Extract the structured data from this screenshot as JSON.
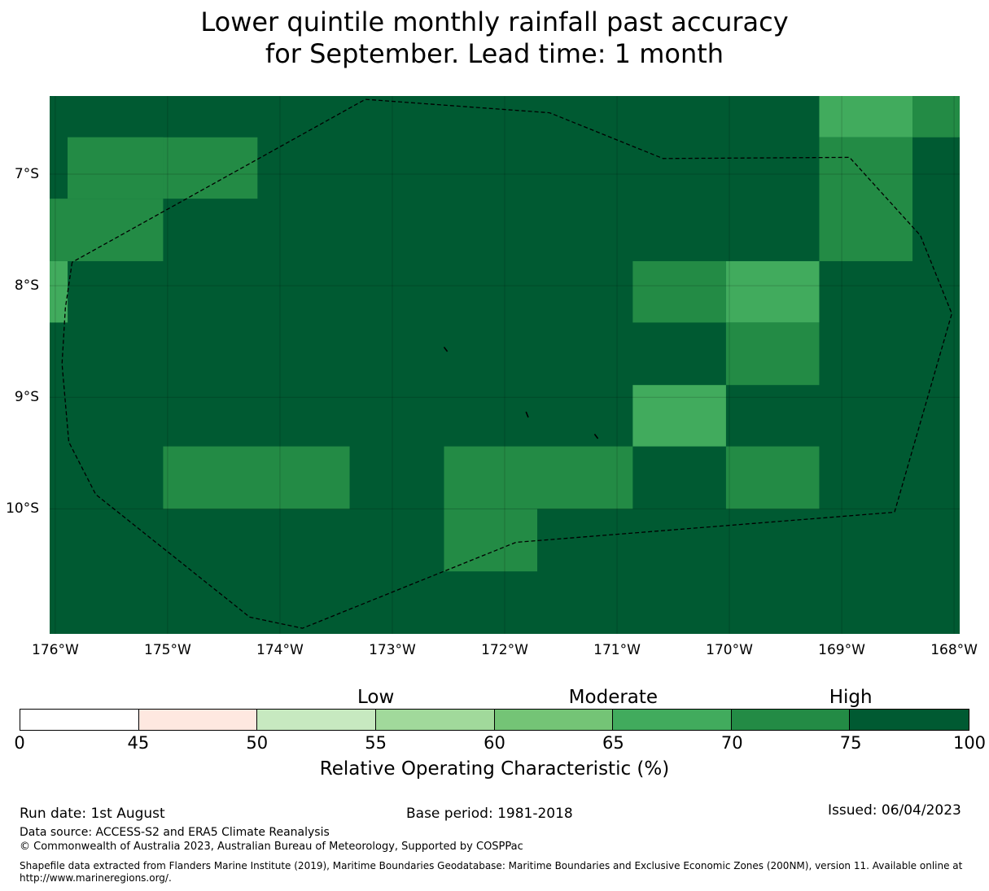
{
  "title": {
    "line1": "Lower quintile monthly rainfall past accuracy",
    "line2": "for September. Lead time: 1 month"
  },
  "map": {
    "background_color": "#005a32",
    "lon_range": [
      -176.05,
      -167.95
    ],
    "lat_range": [
      -6.3,
      -11.12
    ],
    "lat_labels": [
      "7°S",
      "8°S",
      "9°S",
      "10°S"
    ],
    "lat_values": [
      -7,
      -8,
      -9,
      -10
    ],
    "lon_labels": [
      "176°W",
      "175°W",
      "174°W",
      "173°W",
      "172°W",
      "171°W",
      "170°W",
      "169°W",
      "168°W"
    ],
    "lon_values": [
      -176,
      -175,
      -174,
      -173,
      -172,
      -171,
      -170,
      -169,
      -168
    ],
    "cells": [
      {
        "lon0": -169.2,
        "lon1": -168.37,
        "lat0": -6.3,
        "lat1": -6.67,
        "color": "#41ab5d"
      },
      {
        "lon0": -168.37,
        "lon1": -167.95,
        "lat0": -6.3,
        "lat1": -6.67,
        "color": "#238b45"
      },
      {
        "lon0": -175.89,
        "lon1": -174.2,
        "lat0": -6.67,
        "lat1": -7.22,
        "color": "#238b45"
      },
      {
        "lon0": -176.05,
        "lon1": -175.04,
        "lat0": -7.22,
        "lat1": -7.78,
        "color": "#238b45"
      },
      {
        "lon0": -175.89,
        "lon1": -175.04,
        "lat0": -6.67,
        "lat1": -7.22,
        "color": "#238b45"
      },
      {
        "lon0": -176.05,
        "lon1": -175.89,
        "lat0": -7.78,
        "lat1": -8.33,
        "color": "#41ab5d"
      },
      {
        "lon0": -169.2,
        "lon1": -168.37,
        "lat0": -6.67,
        "lat1": -7.78,
        "color": "#238b45"
      },
      {
        "lon0": -170.86,
        "lon1": -170.03,
        "lat0": -7.78,
        "lat1": -8.33,
        "color": "#238b45"
      },
      {
        "lon0": -170.03,
        "lon1": -169.2,
        "lat0": -7.78,
        "lat1": -8.33,
        "color": "#41ab5d"
      },
      {
        "lon0": -170.03,
        "lon1": -169.2,
        "lat0": -8.33,
        "lat1": -8.89,
        "color": "#238b45"
      },
      {
        "lon0": -170.86,
        "lon1": -170.03,
        "lat0": -8.89,
        "lat1": -9.44,
        "color": "#41ab5d"
      },
      {
        "lon0": -170.03,
        "lon1": -169.2,
        "lat0": -9.44,
        "lat1": -10.0,
        "color": "#238b45"
      },
      {
        "lon0": -175.04,
        "lon1": -173.38,
        "lat0": -9.44,
        "lat1": -10.0,
        "color": "#238b45"
      },
      {
        "lon0": -172.54,
        "lon1": -170.86,
        "lat0": -9.44,
        "lat1": -10.0,
        "color": "#238b45"
      },
      {
        "lon0": -172.54,
        "lon1": -171.71,
        "lat0": -10.0,
        "lat1": -10.56,
        "color": "#238b45"
      }
    ],
    "boundary_line": [
      [
        -175.85,
        -7.79
      ],
      [
        -175.91,
        -8.2
      ],
      [
        -175.94,
        -8.7
      ],
      [
        -175.88,
        -9.4
      ],
      [
        -175.64,
        -9.87
      ],
      [
        -174.27,
        -10.97
      ],
      [
        -173.8,
        -11.07
      ],
      [
        -171.9,
        -10.3
      ],
      [
        -168.53,
        -10.03
      ],
      [
        -168.02,
        -8.25
      ],
      [
        -168.3,
        -7.55
      ],
      [
        -168.93,
        -6.85
      ],
      [
        -170.59,
        -6.86
      ],
      [
        -171.6,
        -6.45
      ],
      [
        -173.24,
        -6.33
      ],
      [
        -175.85,
        -7.79
      ]
    ],
    "islets": [
      [
        [
          -172.54,
          -8.55
        ],
        [
          -172.51,
          -8.59
        ]
      ],
      [
        [
          -171.81,
          -9.13
        ],
        [
          -171.79,
          -9.18
        ]
      ],
      [
        [
          -171.2,
          -9.33
        ],
        [
          -171.17,
          -9.37
        ]
      ]
    ]
  },
  "colorbar": {
    "levels": [
      {
        "text": "Low",
        "value": 55
      },
      {
        "text": "Moderate",
        "value": 65
      },
      {
        "text": "High",
        "value": 75
      }
    ],
    "ticks": [
      "0",
      "45",
      "50",
      "55",
      "60",
      "65",
      "70",
      "75",
      "100"
    ],
    "colors": [
      "#ffffff",
      "#fee8e0",
      "#c7e9c0",
      "#a1d99b",
      "#74c476",
      "#41ab5d",
      "#238b45",
      "#005a32"
    ],
    "label": "Relative Operating Characteristic (%)"
  },
  "footer": {
    "run_date": "Run date: 1st August",
    "base_period": "Base period: 1981-2018",
    "issued": "Issued: 06/04/2023",
    "data_source": "Data source: ACCESS-S2 and ERA5 Climate Reanalysis",
    "copyright": "© Commonwealth of Australia 2023, Australian Bureau of Meteorology, Supported by COSPPac",
    "shapefile": "Shapefile data extracted from Flanders Marine Institute (2019), Maritime Boundaries Geodatabase: Maritime Boundaries and Exclusive Economic Zones (200NM), version 11. Available online at http://www.marineregions.org/."
  }
}
